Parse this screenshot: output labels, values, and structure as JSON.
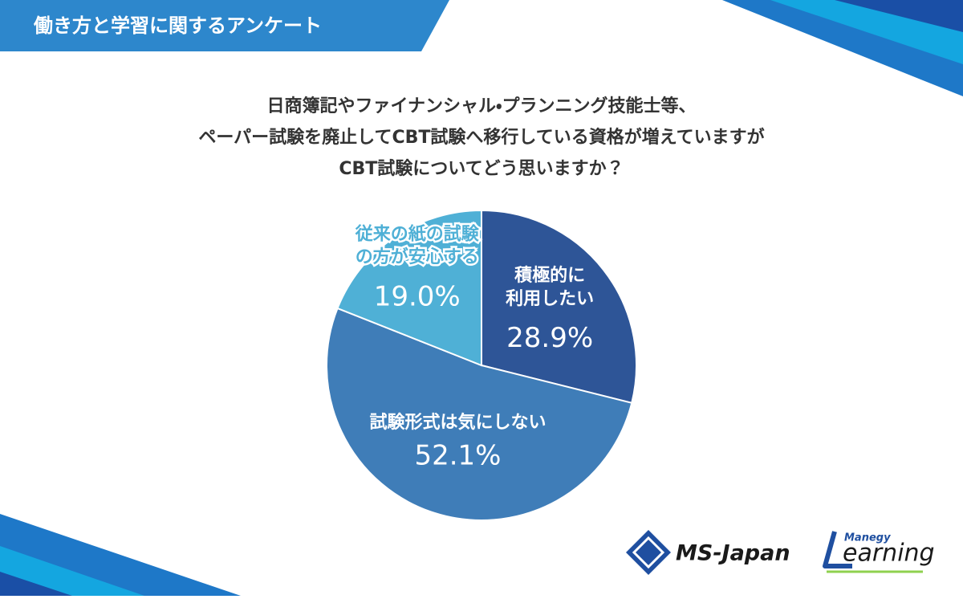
{
  "header": "働き方と学習に関するアンケート",
  "chart_data": {
    "type": "pie",
    "title": [
      "日商簿記やファイナンシャル・プランニング技能士等、",
      "ペーパー試験を廃止してCBT試験へ移行している資格が増えていますが",
      "CBT試験についてどう思いますか？"
    ],
    "categories": [
      "積極的に\n利用したい",
      "試験形式は気にしない",
      "従来の紙の試験\nの方が安心する"
    ],
    "values": [
      28.9,
      52.1,
      19.0
    ],
    "value_labels": [
      "28.9%",
      "52.1%",
      "19.0%"
    ],
    "colors": [
      "#2e5597",
      "#3f7db8",
      "#4fb0d6"
    ]
  },
  "logos": {
    "company": "MS-Japan",
    "brand_small": "Manegy",
    "brand": "earning"
  }
}
